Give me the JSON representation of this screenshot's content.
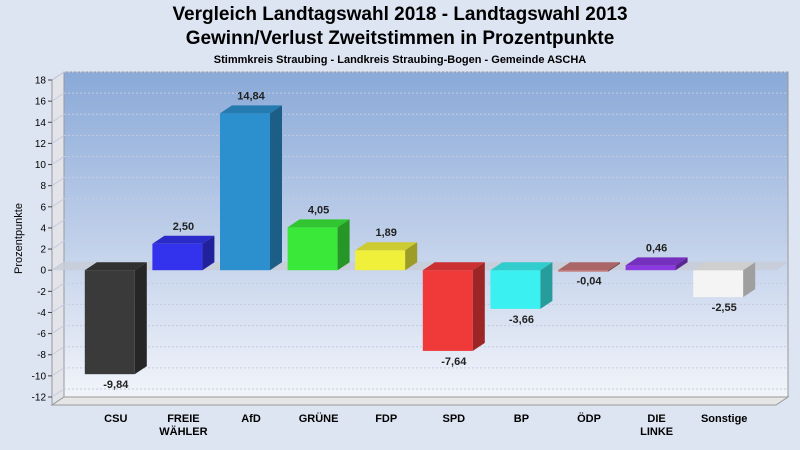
{
  "title": "Vergleich Landtagswahl 2018 - Landtagswahl 2013",
  "subtitle": "Gewinn/Verlust Zweitstimmen in Prozentpunkte",
  "caption": "Stimmkreis Straubing - Landkreis Straubing-Bogen - Gemeinde ASCHA",
  "chart_data": {
    "type": "bar",
    "ylabel": "Prozentpunkte",
    "ylim": [
      -12,
      18
    ],
    "ytick_step": 2,
    "grid": true,
    "categories": [
      [
        "CSU"
      ],
      [
        "FREIE",
        "WÄHLER"
      ],
      [
        "AfD"
      ],
      [
        "GRÜNE"
      ],
      [
        "FDP"
      ],
      [
        "SPD"
      ],
      [
        "BP"
      ],
      [
        "ÖDP"
      ],
      [
        "DIE",
        "LINKE"
      ],
      [
        "Sonstige"
      ]
    ],
    "values": [
      -9.84,
      2.5,
      14.84,
      4.05,
      1.89,
      -7.64,
      -3.66,
      -0.04,
      0.46,
      -2.55
    ],
    "labels": [
      "-9,84",
      "2,50",
      "14,84",
      "4,05",
      "1,89",
      "-7,64",
      "-3,66",
      "-0,04",
      "0,46",
      "-2,55"
    ],
    "colors": [
      "#3a3a3a",
      "#3333ee",
      "#2c90cf",
      "#3ae83a",
      "#f0f03a",
      "#f03a3a",
      "#3af0f0",
      "#c87878",
      "#8a3ae0",
      "#f4f4f4"
    ]
  }
}
